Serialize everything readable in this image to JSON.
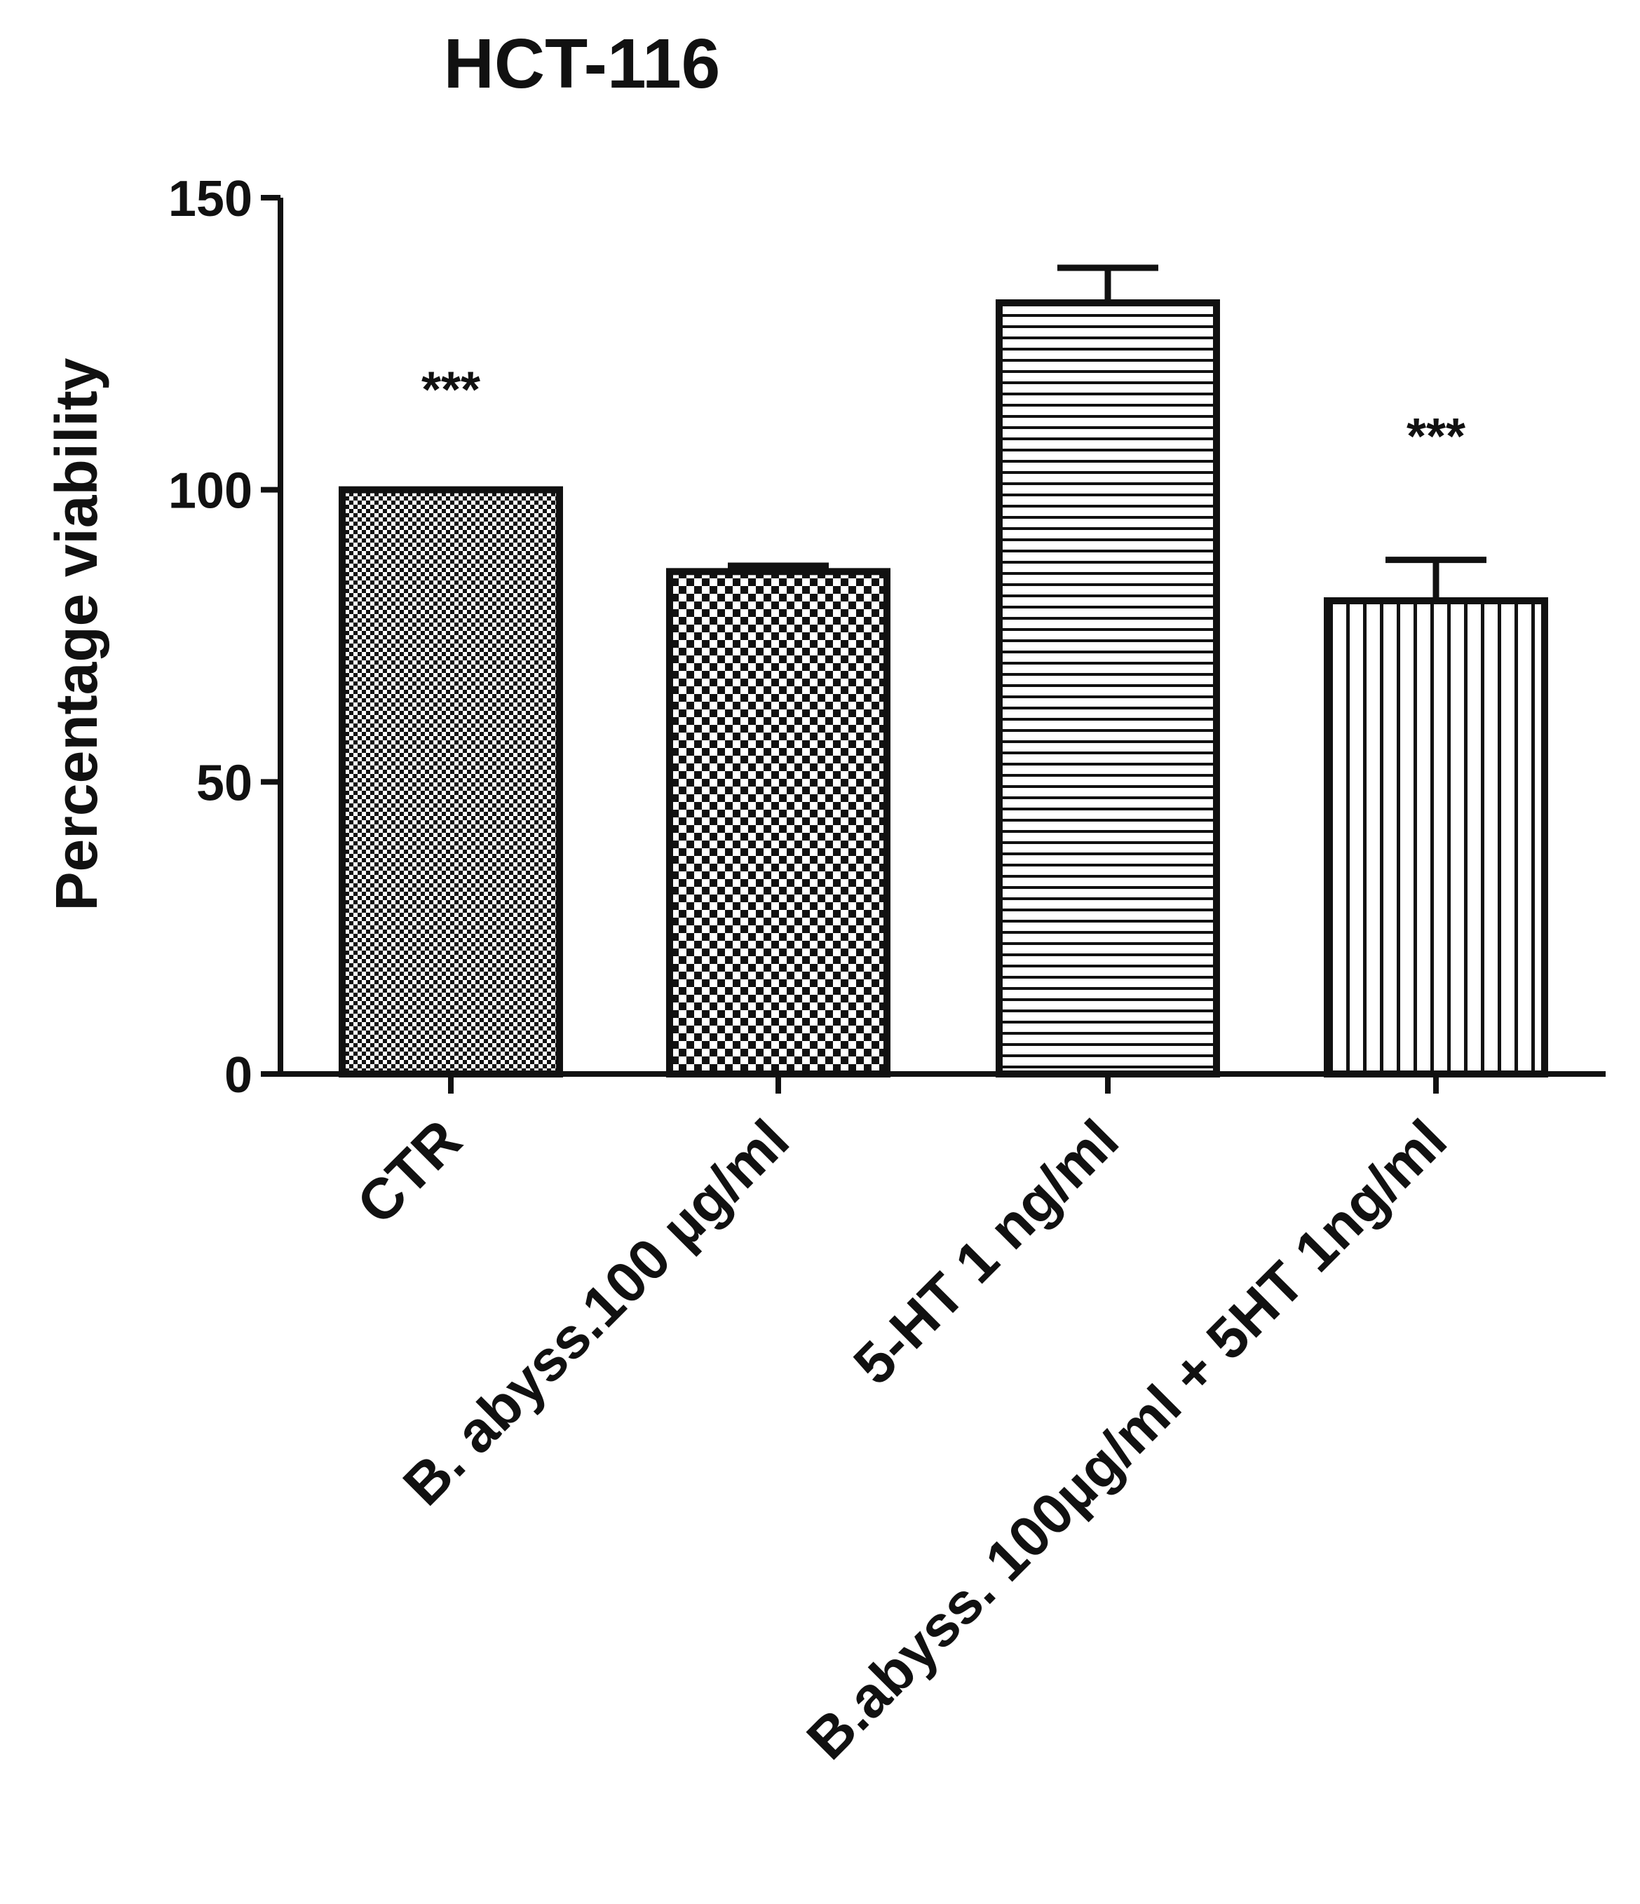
{
  "chart_data": {
    "type": "bar",
    "title": "HCT-116",
    "xlabel": "",
    "ylabel": "Percentage viability",
    "ylim": [
      0,
      150
    ],
    "yticks": [
      0,
      50,
      100,
      150
    ],
    "categories": [
      "CTR",
      "B. abyss.100 µg/ml",
      "5-HT 1 ng/ml",
      "B.abyss. 100µg/ml + 5HT 1ng/ml"
    ],
    "values": [
      100,
      86,
      132,
      81
    ],
    "errors": [
      0,
      1,
      6,
      7
    ],
    "significance": [
      "***",
      "",
      "",
      "***"
    ],
    "significance_heights": [
      119,
      null,
      null,
      111
    ],
    "patterns": [
      "fine-checker",
      "checker",
      "horizontal-lines",
      "vertical-lines"
    ],
    "colors": {
      "ink": "#111111",
      "background": "#ffffff"
    },
    "grid": false
  }
}
